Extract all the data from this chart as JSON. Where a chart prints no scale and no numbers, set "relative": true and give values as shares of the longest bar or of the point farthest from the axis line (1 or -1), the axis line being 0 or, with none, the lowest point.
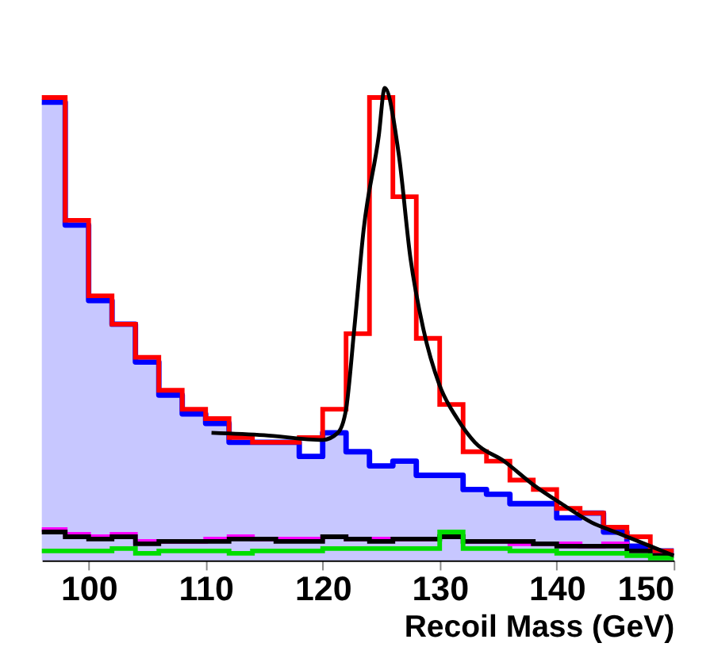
{
  "chart_data": {
    "type": "histogram",
    "xlabel": "Recoil Mass (GeV)",
    "relative": true,
    "grid": false,
    "xlim": [
      96,
      150
    ],
    "xticks": [
      100,
      110,
      120,
      130,
      140,
      150
    ],
    "bins": [
      96,
      98,
      100,
      102,
      104,
      106,
      108,
      110,
      112,
      114,
      116,
      118,
      120,
      122,
      124,
      126,
      128,
      130,
      132,
      134,
      136,
      138,
      140,
      142,
      144,
      146,
      148,
      150
    ],
    "series": [
      {
        "type": "area",
        "color": "#0000ff",
        "x": [
          96,
          98,
          98,
          100,
          100,
          102,
          102,
          104,
          104,
          106,
          106,
          108,
          108,
          110,
          110,
          112,
          112,
          114,
          114,
          116,
          116,
          118,
          118,
          120,
          120,
          122,
          122,
          124,
          124,
          126,
          126,
          128,
          128,
          130,
          130,
          132,
          132,
          134,
          134,
          136,
          136,
          138,
          138,
          140,
          140,
          142,
          142,
          144,
          144,
          146,
          146,
          148,
          148,
          150
        ],
        "values": [
          0.97,
          0.97,
          0.71,
          0.71,
          0.55,
          0.55,
          0.5,
          0.5,
          0.42,
          0.42,
          0.35,
          0.35,
          0.31,
          0.31,
          0.29,
          0.29,
          0.25,
          0.25,
          0.25,
          0.25,
          0.25,
          0.25,
          0.22,
          0.22,
          0.27,
          0.27,
          0.23,
          0.23,
          0.2,
          0.2,
          0.21,
          0.21,
          0.18,
          0.18,
          0.18,
          0.18,
          0.15,
          0.15,
          0.14,
          0.14,
          0.12,
          0.12,
          0.12,
          0.12,
          0.09,
          0.09,
          0.1,
          0.1,
          0.06,
          0.06,
          0.03,
          0.03,
          0.02,
          0.02
        ]
      },
      {
        "color": "#ff0000",
        "values": [
          0.98,
          0.72,
          0.56,
          0.5,
          0.43,
          0.36,
          0.32,
          0.3,
          0.26,
          0.25,
          0.25,
          0.26,
          0.32,
          0.48,
          0.98,
          0.77,
          0.47,
          0.33,
          0.23,
          0.21,
          0.17,
          0.15,
          0.11,
          0.1,
          0.07,
          0.05,
          0.02
        ]
      },
      {
        "color": "#ff00ff",
        "values": [
          0.065,
          0.055,
          0.05,
          0.055,
          0.04,
          0.04,
          0.04,
          0.045,
          0.05,
          0.045,
          0.045,
          0.045,
          0.05,
          0.045,
          0.045,
          0.045,
          0.045,
          0.05,
          0.04,
          0.04,
          0.035,
          0.035,
          0.035,
          0.03,
          0.035,
          0.02,
          0.01
        ]
      },
      {
        "color": "#000000",
        "values": [
          0.06,
          0.05,
          0.045,
          0.05,
          0.035,
          0.04,
          0.04,
          0.04,
          0.045,
          0.045,
          0.04,
          0.04,
          0.05,
          0.045,
          0.04,
          0.045,
          0.045,
          0.05,
          0.04,
          0.04,
          0.04,
          0.035,
          0.03,
          0.03,
          0.03,
          0.02,
          0.01
        ]
      },
      {
        "color": "#00dd00",
        "values": [
          0.02,
          0.02,
          0.02,
          0.025,
          0.015,
          0.02,
          0.02,
          0.02,
          0.015,
          0.02,
          0.02,
          0.02,
          0.025,
          0.025,
          0.025,
          0.025,
          0.025,
          0.06,
          0.025,
          0.025,
          0.02,
          0.02,
          0.015,
          0.015,
          0.015,
          0.01,
          0.005
        ]
      },
      {
        "type": "line",
        "color": "#000000",
        "x": [
          110.5,
          115,
          120,
          121.3,
          122,
          122.7,
          123.5,
          124.8,
          125.3,
          126.5,
          127.5,
          128.6,
          130,
          131.5,
          133,
          135.5,
          138,
          140.4,
          143,
          145,
          148,
          150
        ],
        "values": [
          0.27,
          0.265,
          0.255,
          0.27,
          0.32,
          0.49,
          0.7,
          0.9,
          1.0,
          0.86,
          0.64,
          0.49,
          0.37,
          0.3,
          0.25,
          0.21,
          0.16,
          0.12,
          0.08,
          0.06,
          0.03,
          0.01
        ]
      }
    ]
  }
}
